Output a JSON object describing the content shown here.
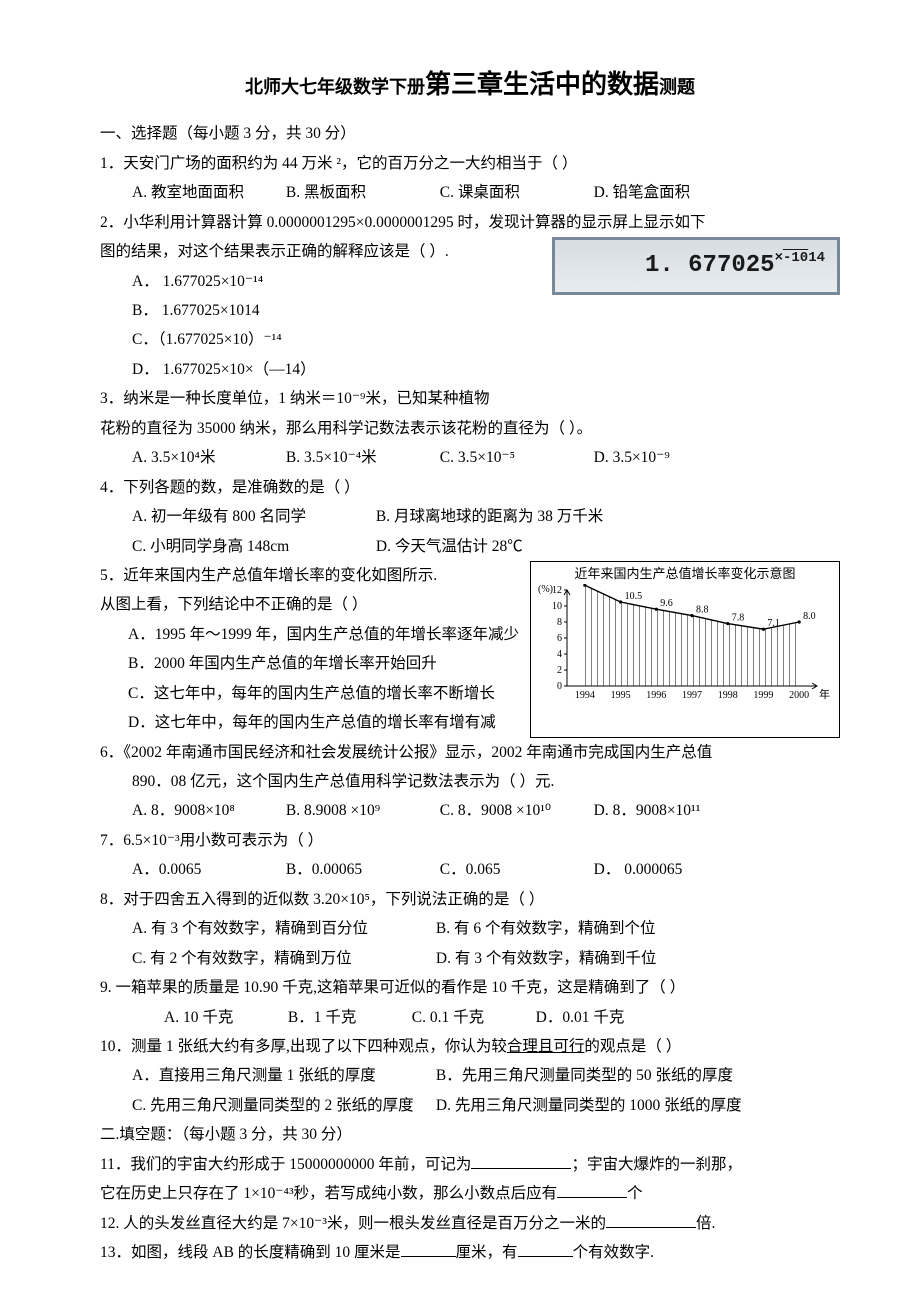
{
  "title_small_left": "北师大七年级数学下册",
  "title_big": "第三章生活中的数据",
  "title_small_right": "测题",
  "section1_head": "一、选择题（每小题 3 分，共 30 分）",
  "q1": {
    "stem": "1．天安门广场的面积约为 44 万米 ²，它的百万分之一大约相当于（     ）",
    "a": "A. 教室地面面积",
    "b": "B. 黑板面积",
    "c": "C. 课桌面积",
    "d": "D. 铅笔盒面积"
  },
  "q2": {
    "stem1": "2．小华利用计算器计算 0.0000001295×0.0000001295 时，发现计算器的显示屏上显示如下",
    "stem2": "图的结果，对这个结果表示正确的解释应该是（     ）.",
    "a": "A． 1.677025×10⁻¹⁴",
    "b": "B． 1.677025×1014",
    "c": "C．（1.677025×10）⁻¹⁴",
    "d": "D． 1.677025×10×（—14）",
    "display_main": "1. 677025",
    "display_x": "×",
    "display_neg": "-10",
    "display_exp": " 14"
  },
  "q3": {
    "stem1": "3．纳米是一种长度单位，1 纳米＝10⁻⁹米，已知某种植物",
    "stem2": "花粉的直径为 35000 纳米，那么用科学记数法表示该花粉的直径为（     ）。",
    "a": "A. 3.5×10⁴米",
    "b": "B. 3.5×10⁻⁴米",
    "c": "C. 3.5×10⁻⁵",
    "d": "D. 3.5×10⁻⁹"
  },
  "q4": {
    "stem": "4．下列各题的数，是准确数的是（     ）",
    "a": "A. 初一年级有 800 名同学",
    "b": "B. 月球离地球的距离为 38 万千米",
    "c": "C. 小明同学身高 148cm",
    "d": "D. 今天气温估计 28℃"
  },
  "q5": {
    "stem1": "5．近年来国内生产总值年增长率的变化如图所示.",
    "stem2": "从图上看，下列结论中不正确的是（   ）",
    "a": "A．1995 年～1999 年，国内生产总值的年增长率逐年减少",
    "b": "B．2000 年国内生产总值的年增长率开始回升",
    "c": "C．这七年中，每年的国内生产总值的增长率不断增长",
    "d": "D．这七年中，每年的国内生产总值的增长率有增有减"
  },
  "chart": {
    "title": "近年来国内生产总值增长率变化示意图",
    "y_unit": "(%)",
    "x_unit": "年",
    "y_max": 12,
    "y_ticks": [
      0,
      2,
      4,
      6,
      8,
      10,
      12
    ],
    "years": [
      1994,
      1995,
      1996,
      1997,
      1998,
      1999,
      2000
    ],
    "values": [
      12.6,
      10.5,
      9.6,
      8.8,
      7.8,
      7.1,
      8.0
    ],
    "line_color": "#000000",
    "hatch_color": "#000000",
    "background_color": "#ffffff"
  },
  "q6": {
    "stem1": "6．《2002 年南通市国民经济和社会发展统计公报》显示，2002 年南通市完成国内生产总值",
    "stem2": "890．08 亿元，这个国内生产总值用科学记数法表示为（     ）元.",
    "a": "A. 8．9008×10⁸",
    "b": "B. 8.9008 ×10⁹",
    "c": "C. 8．9008 ×10¹⁰",
    "d": "D. 8．9008×10¹¹"
  },
  "q7": {
    "stem": "7．6.5×10⁻³用小数可表示为（       ）",
    "a": "A．0.0065",
    "b": "B．0.00065",
    "c": "C．0.065",
    "d": "D．  0.000065"
  },
  "q8": {
    "stem": "8．对于四舍五入得到的近似数 3.20×10⁵，下列说法正确的是（     ）",
    "a": "A. 有 3 个有效数字，精确到百分位",
    "b": "B. 有 6 个有效数字，精确到个位",
    "c": "C. 有 2 个有效数字，精确到万位",
    "d": "D. 有 3 个有效数字，精确到千位"
  },
  "q9": {
    "stem": "9. 一箱苹果的质量是 10.90 千克,这箱苹果可近似的看作是 10 千克，这是精确到了（    ）",
    "a": "A. 10 千克",
    "b": "B．1 千克",
    "c": "C. 0.1 千克",
    "d": "D．0.01 千克"
  },
  "q10": {
    "stem_pre": "10．测量 1 张纸大约有多厚,出现了以下四种观点，你认为较",
    "stem_ul": "合理且可行",
    "stem_post": "的观点是（      ）",
    "a": "A．直接用三角尺测量 1 张纸的厚度",
    "b": "B．先用三角尺测量同类型的 50 张纸的厚度",
    "c": "C. 先用三角尺测量同类型的 2 张纸的厚度",
    "d": "D. 先用三角尺测量同类型的 1000 张纸的厚度"
  },
  "section2_head": "二.填空题：（每小题 3 分，共 30 分）",
  "q11": {
    "p1a": "11．我们的宇宙大约形成于 15000000000 年前，可记为",
    "p1b": "；宇宙大爆炸的一刹那，",
    "p2a": "它在历史上只存在了 1×10⁻⁴³秒，若写成纯小数，那么小数点后应有",
    "p2b": "个"
  },
  "q12": {
    "a": "12. 人的头发丝直径大约是 7×10⁻³米，则一根头发丝直径是百万分之一米的",
    "b": "倍."
  },
  "q13": {
    "a": "13．如图，线段 AB 的长度精确到 10 厘米是",
    "b": "厘米，有",
    "c": "个有效数字."
  }
}
